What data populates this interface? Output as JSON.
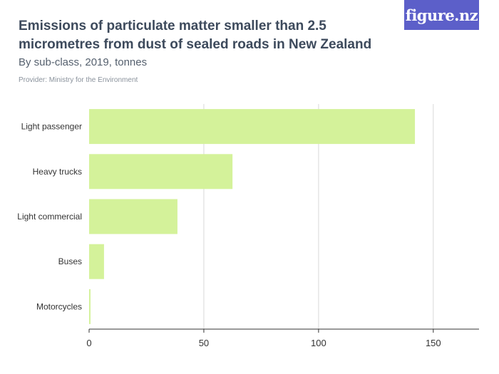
{
  "header": {
    "title": "Emissions of particulate matter smaller than 2.5 micrometres from dust of sealed roads in New Zealand",
    "subtitle": "By sub-class, 2019, tonnes",
    "provider": "Provider: Ministry for the Environment",
    "logo_text": "figure.nz"
  },
  "colors": {
    "bar": "#d4f29a",
    "grid": "#d9d9d9",
    "axis": "#333333",
    "text": "#333333",
    "logo_bg": "#5c5fc9"
  },
  "chart_data": {
    "type": "bar",
    "orientation": "horizontal",
    "categories": [
      "Light passenger",
      "Heavy trucks",
      "Light commercial",
      "Buses",
      "Motorcycles"
    ],
    "values": [
      142,
      62.5,
      38.5,
      6.5,
      0.6
    ],
    "xlim": [
      0,
      160
    ],
    "xticks": [
      0,
      50,
      100,
      150
    ],
    "grid": true,
    "legend": "none"
  }
}
